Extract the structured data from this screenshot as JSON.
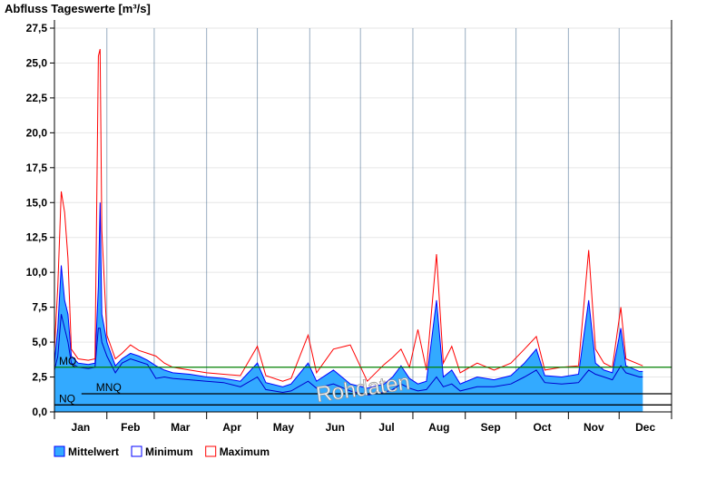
{
  "chart_data": {
    "type": "area",
    "title": "Abfluss Tageswerte [m³/s]",
    "ylim": [
      0,
      27.5
    ],
    "yticks": [
      "0,0",
      "2,5",
      "5,0",
      "7,5",
      "10,0",
      "12,5",
      "15,0",
      "17,5",
      "20,0",
      "22,5",
      "25,0",
      "27,5"
    ],
    "ytick_values": [
      0,
      2.5,
      5,
      7.5,
      10,
      12.5,
      15,
      17.5,
      20,
      22.5,
      25,
      27.5
    ],
    "months": [
      "Jan",
      "Feb",
      "Mar",
      "Apr",
      "May",
      "Jun",
      "Jul",
      "Aug",
      "Sep",
      "Oct",
      "Nov",
      "Dec"
    ],
    "month_start_days": [
      0,
      31,
      59,
      90,
      120,
      151,
      181,
      212,
      243,
      273,
      304,
      334,
      365
    ],
    "watermark": "Rohdaten",
    "reference_lines": [
      {
        "label": "MQ",
        "value": 3.2,
        "color": "#008000"
      },
      {
        "label": "MNQ",
        "value": 1.3,
        "color": "#000000",
        "start_day": 16
      },
      {
        "label": "NQ",
        "value": 0.5,
        "color": "#000000"
      }
    ],
    "legend": [
      {
        "label": "Mittelwert",
        "fill": "#33aaff",
        "stroke": "#0000ff"
      },
      {
        "label": "Minimum",
        "fill": "#ffffff",
        "stroke": "#0000ff"
      },
      {
        "label": "Maximum",
        "fill": "#ffffff",
        "stroke": "#ff0000"
      }
    ],
    "x_day": [
      0,
      2,
      4,
      6,
      8,
      10,
      14,
      20,
      24,
      26,
      27,
      28,
      31,
      36,
      40,
      45,
      50,
      55,
      60,
      65,
      70,
      80,
      90,
      100,
      110,
      120,
      125,
      135,
      140,
      150,
      155,
      165,
      175,
      185,
      195,
      200,
      205,
      210,
      215,
      220,
      226,
      230,
      235,
      240,
      250,
      260,
      270,
      278,
      285,
      290,
      300,
      310,
      316,
      320,
      325,
      330,
      335,
      338,
      346,
      348
    ],
    "series": [
      {
        "name": "Mittelwert",
        "values": [
          3.5,
          6,
          10.5,
          8,
          7,
          4,
          3.5,
          3.4,
          3.5,
          9,
          15,
          7,
          5,
          3.3,
          3.8,
          4.2,
          4,
          3.7,
          3.3,
          3,
          2.8,
          2.7,
          2.5,
          2.4,
          2.2,
          3.5,
          2.1,
          1.8,
          2,
          3.5,
          2.2,
          3,
          2,
          1.7,
          2,
          2.5,
          3.3,
          2.4,
          2,
          2.2,
          8,
          2.5,
          3,
          2,
          2.5,
          2.3,
          2.6,
          3.5,
          4.5,
          2.6,
          2.5,
          2.7,
          8,
          3.5,
          3,
          2.8,
          6,
          3.3,
          2.9,
          2.9
        ]
      },
      {
        "name": "Minimum",
        "values": [
          3,
          4,
          7,
          6,
          5,
          3.5,
          3.2,
          3.1,
          3.2,
          6,
          6,
          5,
          4,
          2.8,
          3.5,
          3.8,
          3.6,
          3.4,
          2.4,
          2.5,
          2.4,
          2.3,
          2.2,
          2.1,
          1.8,
          2.5,
          1.6,
          1.4,
          1.5,
          2.2,
          1.7,
          2,
          1.5,
          1.2,
          1.4,
          1.6,
          2,
          1.7,
          1.5,
          1.6,
          2.5,
          1.8,
          2,
          1.5,
          1.8,
          1.8,
          2,
          2.5,
          3,
          2.1,
          2,
          2.1,
          3,
          2.7,
          2.5,
          2.3,
          3.3,
          2.8,
          2.5,
          2.5
        ]
      },
      {
        "name": "Maximum",
        "values": [
          4.5,
          9,
          15.8,
          14.3,
          11,
          4.5,
          3.8,
          3.7,
          3.8,
          25.5,
          26,
          13,
          5.5,
          3.8,
          4.2,
          4.8,
          4.4,
          4.2,
          4,
          3.5,
          3.2,
          3,
          2.8,
          2.7,
          2.6,
          4.7,
          2.6,
          2.2,
          2.4,
          5.5,
          2.8,
          4.5,
          4.8,
          2.2,
          3.4,
          3.9,
          4.5,
          3.2,
          5.9,
          3,
          11.3,
          3.5,
          4.7,
          2.8,
          3.5,
          3,
          3.5,
          4.5,
          5.4,
          3,
          3.2,
          3.3,
          11.6,
          4.5,
          3.5,
          3.2,
          7.5,
          3.8,
          3.4,
          3.3
        ]
      }
    ]
  }
}
